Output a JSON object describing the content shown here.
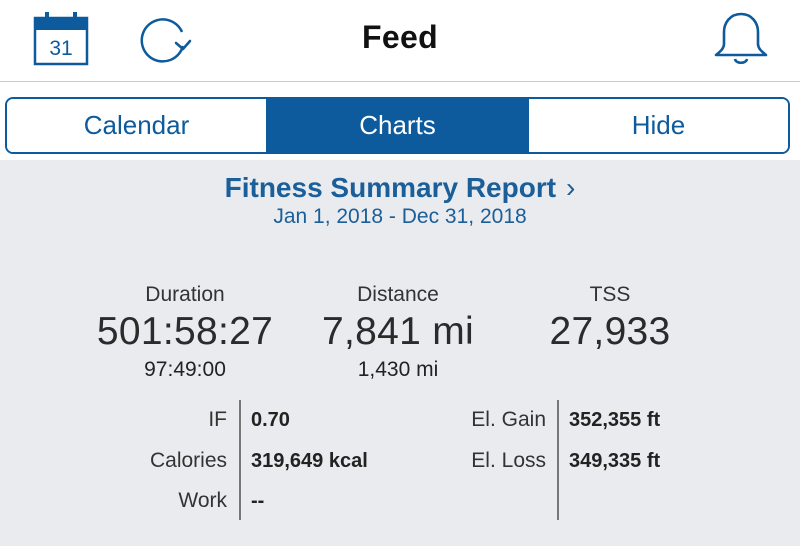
{
  "header": {
    "title": "Feed",
    "calendar_day": "31",
    "icons": {
      "calendar": "calendar-icon",
      "refresh": "refresh-icon",
      "notifications": "bell-icon"
    }
  },
  "tabs": [
    {
      "label": "Calendar",
      "active": false
    },
    {
      "label": "Charts",
      "active": true
    },
    {
      "label": "Hide",
      "active": false
    }
  ],
  "report": {
    "title": "Fitness Summary Report",
    "chevron": "›",
    "date_range": "Jan 1, 2018 - Dec 31, 2018"
  },
  "stats": {
    "duration": {
      "label": "Duration",
      "value": "501:58:27",
      "sub": "97:49:00"
    },
    "distance": {
      "label": "Distance",
      "value": "7,841 mi",
      "sub": "1,430 mi"
    },
    "tss": {
      "label": "TSS",
      "value": "27,933"
    }
  },
  "metrics": {
    "if": {
      "label": "IF",
      "value": "0.70"
    },
    "calories": {
      "label": "Calories",
      "value": "319,649 kcal"
    },
    "work": {
      "label": "Work",
      "value": "--"
    },
    "el_gain": {
      "label": "El. Gain",
      "value": "352,355 ft"
    },
    "el_loss": {
      "label": "El. Loss",
      "value": "349,335 ft"
    }
  },
  "colors": {
    "accent": "#0d5a9c",
    "link": "#1a5e9a",
    "background": "#e9ebee"
  }
}
